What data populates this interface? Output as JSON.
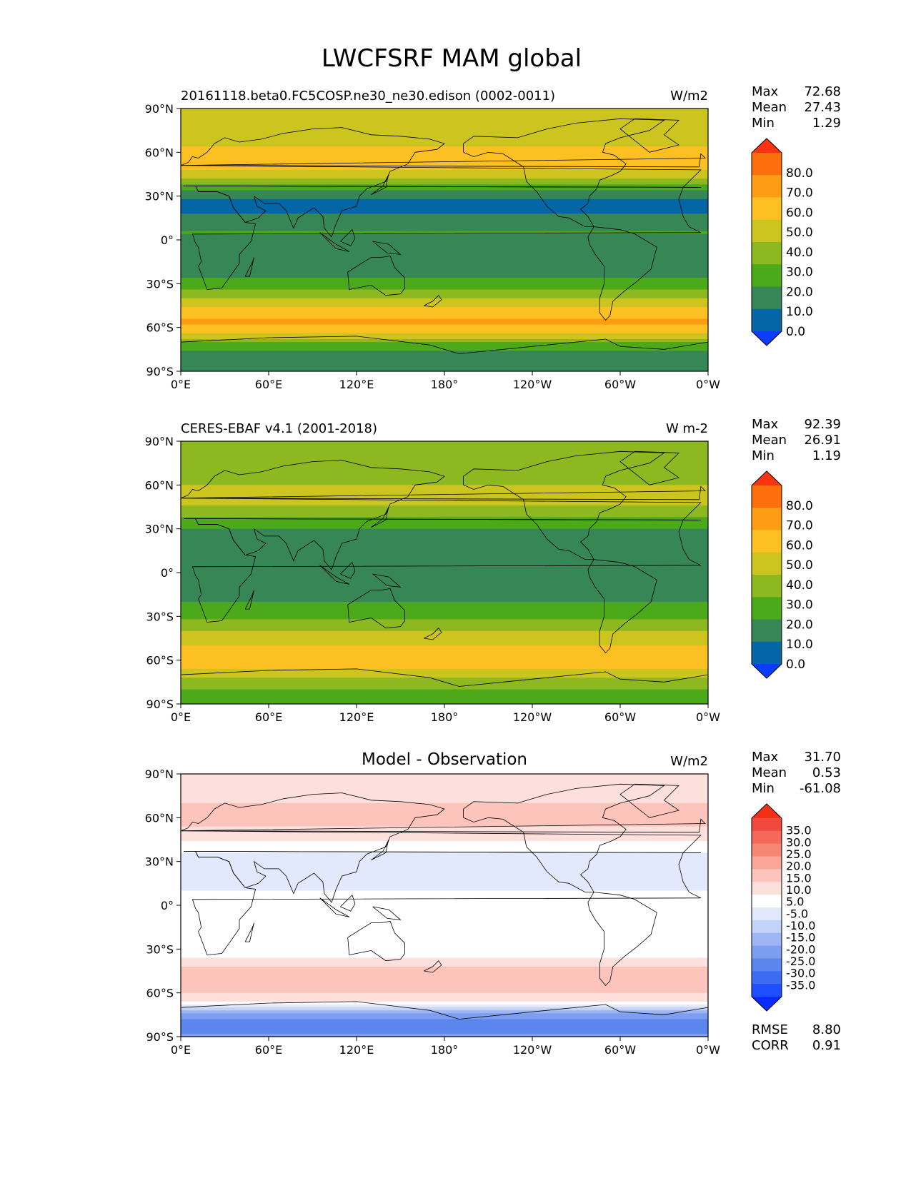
{
  "figure": {
    "title": "LWCFSRF MAM global"
  },
  "colors": {
    "abs_scale": [
      "#0a3dff",
      "#0566a6",
      "#378656",
      "#4caa1a",
      "#8db820",
      "#cdc51f",
      "#fcc022",
      "#fe9c14",
      "#fd6f0d",
      "#fd3210"
    ],
    "diff_scale": [
      "#0a2dff",
      "#1f50ff",
      "#3d6cf2",
      "#5a86ee",
      "#7c9ef0",
      "#9fb6f4",
      "#c3d2f8",
      "#e2e9fc",
      "#ffffff",
      "#ffffff",
      "#fde0dc",
      "#fcc4bb",
      "#faa597",
      "#f78676",
      "#f4695a",
      "#ef4a3d",
      "#f52f16"
    ],
    "coastline": "#000000"
  },
  "chart_data": [
    {
      "type": "heatmap",
      "title": "20161118.beta0.FC5COSP.ne30_ne30.edison (0002-0011)",
      "units": "W/m2",
      "stats": {
        "max_label": "Max",
        "max": "72.68",
        "mean_label": "Mean",
        "mean": "27.43",
        "min_label": "Min",
        "min": "1.29"
      },
      "colorbar": {
        "levels": [
          "80.0",
          "70.0",
          "60.0",
          "50.0",
          "40.0",
          "30.0",
          "20.0",
          "10.0",
          "0.0"
        ],
        "extend": "both"
      },
      "x_ticks": [
        "0°E",
        "60°E",
        "120°E",
        "180°",
        "120°W",
        "60°W",
        "0°W"
      ],
      "y_ticks": [
        "90°N",
        "60°N",
        "30°N",
        "0°",
        "30°S",
        "60°S",
        "90°S"
      ],
      "xlim": [
        0,
        360
      ],
      "ylim": [
        -90,
        90
      ],
      "lat_profile": [
        [
          -90,
          20
        ],
        [
          -80,
          12
        ],
        [
          -72,
          25
        ],
        [
          -65,
          48
        ],
        [
          -57,
          62
        ],
        [
          -50,
          58
        ],
        [
          -42,
          45
        ],
        [
          -35,
          30
        ],
        [
          -25,
          18
        ],
        [
          -15,
          15
        ],
        [
          -5,
          12
        ],
        [
          0,
          15
        ],
        [
          5,
          22
        ],
        [
          10,
          16
        ],
        [
          20,
          8
        ],
        [
          28,
          8
        ],
        [
          35,
          22
        ],
        [
          42,
          38
        ],
        [
          50,
          54
        ],
        [
          58,
          58
        ],
        [
          65,
          48
        ],
        [
          75,
          45
        ],
        [
          85,
          46
        ],
        [
          90,
          45
        ]
      ]
    },
    {
      "type": "heatmap",
      "title": "CERES-EBAF v4.1 (2001-2018)",
      "units": "W m-2",
      "stats": {
        "max_label": "Max",
        "max": "92.39",
        "mean_label": "Mean",
        "mean": "26.91",
        "min_label": "Min",
        "min": "1.19"
      },
      "colorbar": {
        "levels": [
          "80.0",
          "70.0",
          "60.0",
          "50.0",
          "40.0",
          "30.0",
          "20.0",
          "10.0",
          "0.0"
        ],
        "extend": "both"
      },
      "x_ticks": [
        "0°E",
        "60°E",
        "120°E",
        "180°",
        "120°W",
        "60°W",
        "0°W"
      ],
      "y_ticks": [
        "90°N",
        "60°N",
        "30°N",
        "0°",
        "30°S",
        "60°S",
        "90°S"
      ],
      "xlim": [
        0,
        360
      ],
      "ylim": [
        -90,
        90
      ],
      "lat_profile": [
        [
          -90,
          22
        ],
        [
          -82,
          28
        ],
        [
          -73,
          38
        ],
        [
          -65,
          52
        ],
        [
          -57,
          55
        ],
        [
          -50,
          50
        ],
        [
          -42,
          42
        ],
        [
          -35,
          32
        ],
        [
          -25,
          22
        ],
        [
          -15,
          18
        ],
        [
          -5,
          16
        ],
        [
          0,
          12
        ],
        [
          5,
          18
        ],
        [
          10,
          16
        ],
        [
          20,
          15
        ],
        [
          28,
          18
        ],
        [
          35,
          25
        ],
        [
          42,
          35
        ],
        [
          50,
          45
        ],
        [
          58,
          42
        ],
        [
          65,
          35
        ],
        [
          75,
          32
        ],
        [
          85,
          38
        ],
        [
          90,
          40
        ]
      ]
    },
    {
      "type": "heatmap",
      "title": "Model - Observation",
      "units": "W/m2",
      "stats": {
        "max_label": "Max",
        "max": "31.70",
        "mean_label": "Mean",
        "mean": "0.53",
        "min_label": "Min",
        "min": "-61.08"
      },
      "metrics": {
        "rmse_label": "RMSE",
        "rmse": "8.80",
        "corr_label": "CORR",
        "corr": "0.91"
      },
      "colorbar": {
        "levels": [
          "35.0",
          "30.0",
          "25.0",
          "20.0",
          "15.0",
          "10.0",
          "5.0",
          "-5.0",
          "-10.0",
          "-15.0",
          "-20.0",
          "-25.0",
          "-30.0",
          "-35.0"
        ],
        "extend": "both"
      },
      "x_ticks": [
        "0°E",
        "60°E",
        "120°E",
        "180°",
        "120°W",
        "60°W",
        "0°W"
      ],
      "y_ticks": [
        "90°N",
        "60°N",
        "30°N",
        "0°",
        "30°S",
        "60°S",
        "90°S"
      ],
      "xlim": [
        0,
        360
      ],
      "ylim": [
        -90,
        90
      ],
      "lat_profile": [
        [
          -90,
          -18
        ],
        [
          -82,
          -25
        ],
        [
          -75,
          -18
        ],
        [
          -70,
          -5
        ],
        [
          -65,
          6
        ],
        [
          -57,
          12
        ],
        [
          -50,
          14
        ],
        [
          -42,
          10
        ],
        [
          -35,
          4
        ],
        [
          -25,
          0
        ],
        [
          -10,
          0
        ],
        [
          0,
          0
        ],
        [
          10,
          0
        ],
        [
          20,
          -3
        ],
        [
          30,
          -4
        ],
        [
          38,
          2
        ],
        [
          45,
          6
        ],
        [
          55,
          10
        ],
        [
          62,
          12
        ],
        [
          70,
          10
        ],
        [
          80,
          9
        ],
        [
          90,
          8
        ]
      ]
    }
  ]
}
